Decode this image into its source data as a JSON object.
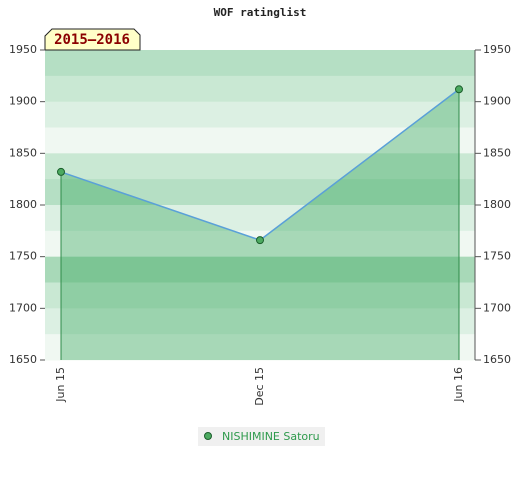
{
  "chart_data": {
    "type": "area",
    "title": "WOF ratinglist",
    "badge": "2015–2016",
    "categories": [
      "Jun 15",
      "Dec 15",
      "Jun 16"
    ],
    "series": [
      {
        "name": "NISHIMINE Satoru",
        "color": "#5aa0d8",
        "fill": "#3aa860",
        "marker_color": "#4caa60",
        "values": [
          1832,
          1766,
          1912
        ]
      }
    ],
    "ylim": [
      1650,
      1950
    ],
    "yticks": [
      1650,
      1700,
      1750,
      1800,
      1850,
      1900,
      1950
    ],
    "y2lim": [
      1650,
      1950
    ],
    "y2ticks": [
      1650,
      1700,
      1750,
      1800,
      1850,
      1900,
      1950
    ]
  }
}
